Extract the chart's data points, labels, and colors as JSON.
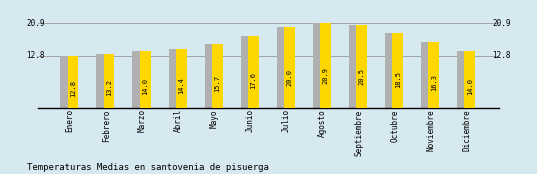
{
  "categories": [
    "Enero",
    "Febrero",
    "Marzo",
    "Abril",
    "Mayo",
    "Junio",
    "Julio",
    "Agosto",
    "Septiembre",
    "Octubre",
    "Noviembre",
    "Diciembre"
  ],
  "values": [
    12.8,
    13.2,
    14.0,
    14.4,
    15.7,
    17.6,
    20.0,
    20.9,
    20.5,
    18.5,
    16.3,
    14.0
  ],
  "bar_color": "#FFD700",
  "shadow_color": "#B0B0B0",
  "background_color": "#D6E8F0",
  "title": "Temperaturas Medias en santovenia de pisuerga",
  "yline1": 20.9,
  "yline2": 12.8,
  "ylabel_left_1": "20.9",
  "ylabel_left_2": "12.8",
  "ylabel_right_1": "20.9",
  "ylabel_right_2": "12.8",
  "value_fontsize": 5.0,
  "label_fontsize": 5.5,
  "title_fontsize": 6.5,
  "ymax": 24.0
}
